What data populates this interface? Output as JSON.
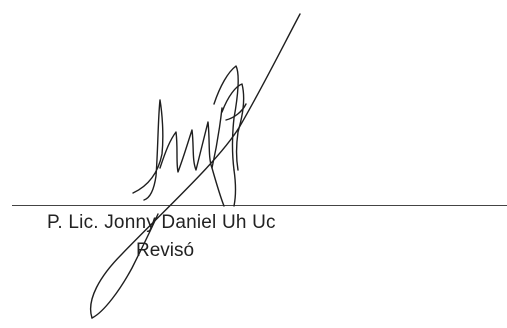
{
  "signature_block": {
    "signer_name": "P. Lic. Jonny Daniel Uh Uc",
    "role": "Revisó"
  }
}
